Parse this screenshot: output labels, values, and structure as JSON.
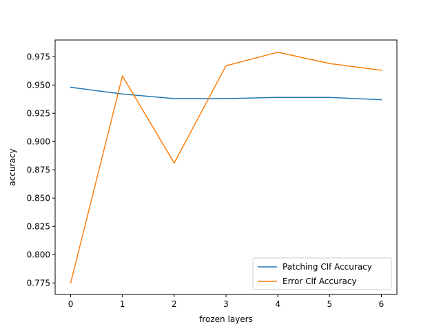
{
  "chart_data": {
    "type": "line",
    "title": "",
    "xlabel": "frozen layers",
    "ylabel": "accuracy",
    "x": [
      0,
      1,
      2,
      3,
      4,
      5,
      6
    ],
    "xticks": [
      0,
      1,
      2,
      3,
      4,
      5,
      6
    ],
    "xlim": [
      -0.3,
      6.3
    ],
    "yticks": [
      0.775,
      0.8,
      0.825,
      0.85,
      0.875,
      0.9,
      0.925,
      0.95,
      0.975
    ],
    "ylim": [
      0.7648,
      0.9898
    ],
    "grid": false,
    "legend_position": "lower-right",
    "series": [
      {
        "name": "Patching Clf Accuracy",
        "color": "#1f77b4",
        "values": [
          0.948,
          0.942,
          0.938,
          0.938,
          0.939,
          0.939,
          0.937
        ]
      },
      {
        "name": "Error Clf Accuracy",
        "color": "#ff7f0e",
        "values": [
          0.775,
          0.958,
          0.881,
          0.967,
          0.979,
          0.969,
          0.963
        ]
      }
    ]
  }
}
